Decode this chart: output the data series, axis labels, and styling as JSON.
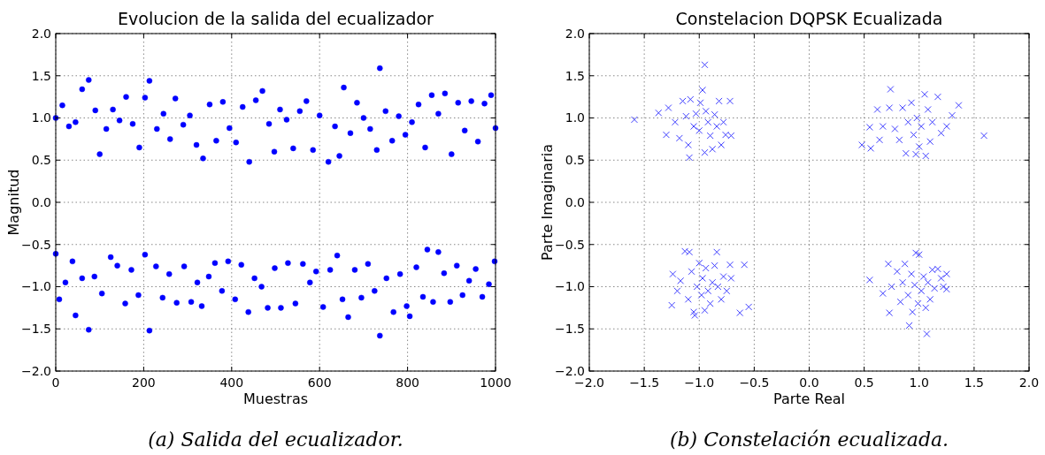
{
  "chart_data": [
    {
      "type": "scatter",
      "title": "Evolucion de la salida del ecualizador",
      "xlabel": "Muestras",
      "ylabel": "Magnitud",
      "annotations": [
        "(a) Salida del ecualizador."
      ],
      "marker": "circle",
      "grid": true,
      "xlim": [
        0,
        1000
      ],
      "xticks": [
        0,
        200,
        400,
        600,
        800,
        1000
      ],
      "ylim": [
        -2,
        2
      ],
      "yticks": [
        {
          "value": -2,
          "label": "−2.0"
        },
        {
          "value": -1.5,
          "label": "−1.5"
        },
        {
          "value": -1,
          "label": "−1.0"
        },
        {
          "value": -0.5,
          "label": "−0.5"
        },
        {
          "value": 0,
          "label": "0.0"
        },
        {
          "value": 0.5,
          "label": "0.5"
        },
        {
          "value": 1,
          "label": "1.0"
        },
        {
          "value": 1.5,
          "label": "1.5"
        },
        {
          "value": 2,
          "label": "2.0"
        }
      ],
      "series": [
        {
          "color": "#0000ff",
          "x": [
            0,
            15,
            30,
            45,
            60,
            75,
            90,
            100,
            115,
            130,
            145,
            160,
            175,
            190,
            203,
            213,
            230,
            245,
            260,
            272,
            290,
            305,
            320,
            335,
            350,
            365,
            380,
            395,
            410,
            425,
            440,
            455,
            470,
            485,
            497,
            510,
            525,
            540,
            555,
            570,
            585,
            600,
            620,
            635,
            645,
            655,
            670,
            685,
            700,
            715,
            730,
            737,
            750,
            765,
            780,
            795,
            810,
            825,
            840,
            855,
            870,
            885,
            900,
            915,
            930,
            945,
            960,
            975,
            990,
            1000
          ],
          "values": [
            1.0,
            1.15,
            0.9,
            0.95,
            1.34,
            1.45,
            1.09,
            0.57,
            0.87,
            1.1,
            0.97,
            1.25,
            0.93,
            0.65,
            1.24,
            1.44,
            0.87,
            1.05,
            0.75,
            1.23,
            0.92,
            1.03,
            0.68,
            0.52,
            1.16,
            0.73,
            1.19,
            0.88,
            0.71,
            1.13,
            0.48,
            1.21,
            1.32,
            0.93,
            0.6,
            1.1,
            0.98,
            0.64,
            1.08,
            1.2,
            0.62,
            1.03,
            0.48,
            0.9,
            0.55,
            1.36,
            0.82,
            1.18,
            1.0,
            0.87,
            0.62,
            1.59,
            1.08,
            0.73,
            1.02,
            0.8,
            0.95,
            1.16,
            0.65,
            1.27,
            1.05,
            1.29,
            0.57,
            1.18,
            0.85,
            1.2,
            0.72,
            1.17,
            1.27,
            0.88
          ]
        },
        {
          "color": "#0000ff",
          "x": [
            0,
            8,
            22,
            38,
            45,
            60,
            75,
            88,
            105,
            125,
            140,
            158,
            172,
            188,
            203,
            213,
            228,
            243,
            258,
            275,
            292,
            308,
            322,
            332,
            348,
            362,
            378,
            392,
            408,
            422,
            438,
            452,
            468,
            482,
            498,
            512,
            528,
            545,
            562,
            578,
            592,
            608,
            624,
            640,
            652,
            665,
            680,
            695,
            710,
            725,
            737,
            752,
            768,
            783,
            798,
            805,
            820,
            835,
            845,
            858,
            870,
            883,
            897,
            912,
            925,
            940,
            955,
            970,
            985,
            998
          ],
          "values": [
            -0.61,
            -1.15,
            -0.95,
            -0.7,
            -1.34,
            -0.9,
            -1.51,
            -0.88,
            -1.08,
            -0.65,
            -0.75,
            -1.2,
            -0.8,
            -1.1,
            -0.62,
            -1.52,
            -0.76,
            -1.13,
            -0.85,
            -1.19,
            -0.76,
            -1.18,
            -0.95,
            -1.23,
            -0.88,
            -0.72,
            -1.05,
            -0.7,
            -1.15,
            -0.74,
            -1.3,
            -0.9,
            -1.0,
            -1.25,
            -0.78,
            -1.25,
            -0.72,
            -1.2,
            -0.73,
            -0.95,
            -0.82,
            -1.24,
            -0.8,
            -0.63,
            -1.15,
            -1.36,
            -0.8,
            -1.13,
            -0.73,
            -1.05,
            -1.58,
            -0.9,
            -1.3,
            -0.85,
            -1.23,
            -1.35,
            -0.77,
            -1.12,
            -0.56,
            -1.18,
            -0.59,
            -0.84,
            -1.18,
            -0.75,
            -1.1,
            -0.93,
            -0.79,
            -1.12,
            -0.97,
            -0.7
          ]
        }
      ]
    },
    {
      "type": "scatter",
      "title": "Constelacion DQPSK Ecualizada",
      "xlabel": "Parte Real",
      "ylabel": "Parte Imaginaria",
      "annotations": [
        "(b) Constelación ecualizada."
      ],
      "marker": "cross",
      "grid": true,
      "xlim": [
        -2,
        2
      ],
      "xticks": [
        {
          "value": -2,
          "label": "−2.0"
        },
        {
          "value": -1.5,
          "label": "−1.5"
        },
        {
          "value": -1,
          "label": "−1.0"
        },
        {
          "value": -0.5,
          "label": "−0.5"
        },
        {
          "value": 0,
          "label": "0.0"
        },
        {
          "value": 0.5,
          "label": "0.5"
        },
        {
          "value": 1,
          "label": "1.0"
        },
        {
          "value": 1.5,
          "label": "1.5"
        },
        {
          "value": 2,
          "label": "2.0"
        }
      ],
      "ylim": [
        -2,
        2
      ],
      "yticks": [
        {
          "value": -2,
          "label": "−2.0"
        },
        {
          "value": -1.5,
          "label": "−1.5"
        },
        {
          "value": -1,
          "label": "−1.0"
        },
        {
          "value": -0.5,
          "label": "−0.5"
        },
        {
          "value": 0,
          "label": "0.0"
        },
        {
          "value": 0.5,
          "label": "0.5"
        },
        {
          "value": 1,
          "label": "1.0"
        },
        {
          "value": 1.5,
          "label": "1.5"
        },
        {
          "value": 2,
          "label": "2.0"
        }
      ],
      "series": [
        {
          "color": "#4040ff",
          "x": [
            -1.59,
            -1.37,
            -1.3,
            -1.28,
            -1.22,
            -1.18,
            -1.15,
            -1.12,
            -1.1,
            -1.09,
            -1.08,
            -1.05,
            -1.03,
            -1.0,
            -0.99,
            -0.97,
            -0.95,
            -0.95,
            -0.94,
            -0.92,
            -0.9,
            -0.88,
            -0.86,
            -0.84,
            -0.82,
            -0.8,
            -0.78,
            -0.76,
            -0.72,
            -0.71,
            0.48,
            0.55,
            0.56,
            0.62,
            0.64,
            0.67,
            0.73,
            0.74,
            0.78,
            0.82,
            0.85,
            0.88,
            0.9,
            0.93,
            0.95,
            0.97,
            0.98,
            1.0,
            1.02,
            1.05,
            1.06,
            1.08,
            1.1,
            1.12,
            1.17,
            1.2,
            1.25,
            1.3,
            1.36,
            1.59,
            -1.25,
            -1.24,
            -1.2,
            -1.17,
            -1.13,
            -1.1,
            -1.09,
            -1.07,
            -1.05,
            -1.04,
            -1.02,
            -1.0,
            -0.98,
            -0.97,
            -0.95,
            -0.94,
            -0.92,
            -0.9,
            -0.88,
            -0.86,
            -0.84,
            -0.83,
            -0.8,
            -0.78,
            -0.75,
            -0.72,
            -0.71,
            -0.59,
            -0.63,
            -0.55,
            0.55,
            0.67,
            0.72,
            0.73,
            0.75,
            0.8,
            0.83,
            0.85,
            0.87,
            0.9,
            0.91,
            0.93,
            0.94,
            0.96,
            0.97,
            0.99,
            1.0,
            1.02,
            1.04,
            1.06,
            1.07,
            1.08,
            1.1,
            1.12,
            1.14,
            1.17,
            1.2,
            1.22,
            1.25,
            1.25
          ],
          "values": [
            0.98,
            1.06,
            0.8,
            1.12,
            0.95,
            0.76,
            1.2,
            1.02,
            0.68,
            0.53,
            1.22,
            0.9,
            1.05,
            0.85,
            1.18,
            1.33,
            1.63,
            0.59,
            1.08,
            0.95,
            0.79,
            0.63,
            1.04,
            0.9,
            1.2,
            0.68,
            0.95,
            0.8,
            1.2,
            0.79,
            0.68,
            0.89,
            0.64,
            1.1,
            0.74,
            0.9,
            1.12,
            1.34,
            0.87,
            0.74,
            1.12,
            0.58,
            0.95,
            1.18,
            0.8,
            0.57,
            1.0,
            0.66,
            0.9,
            1.28,
            0.55,
            1.1,
            0.72,
            0.95,
            1.25,
            0.82,
            0.9,
            1.03,
            1.15,
            0.79,
            -1.22,
            -0.85,
            -1.05,
            -0.93,
            -0.58,
            -1.15,
            -0.59,
            -0.82,
            -1.3,
            -1.34,
            -1.0,
            -0.72,
            -1.1,
            -0.9,
            -1.28,
            -0.78,
            -1.05,
            -1.2,
            -0.95,
            -0.75,
            -0.59,
            -1.0,
            -1.15,
            -0.88,
            -1.05,
            -0.74,
            -0.9,
            -0.74,
            -1.31,
            -1.24,
            -0.92,
            -1.08,
            -0.73,
            -1.31,
            -1.0,
            -0.82,
            -1.18,
            -0.95,
            -0.73,
            -1.1,
            -1.46,
            -0.85,
            -1.3,
            -0.98,
            -0.6,
            -1.2,
            -0.62,
            -1.05,
            -0.88,
            -1.25,
            -1.56,
            -0.95,
            -1.15,
            -0.8,
            -1.02,
            -0.79,
            -0.9,
            -1.0,
            -0.85,
            -1.03
          ]
        }
      ]
    }
  ]
}
